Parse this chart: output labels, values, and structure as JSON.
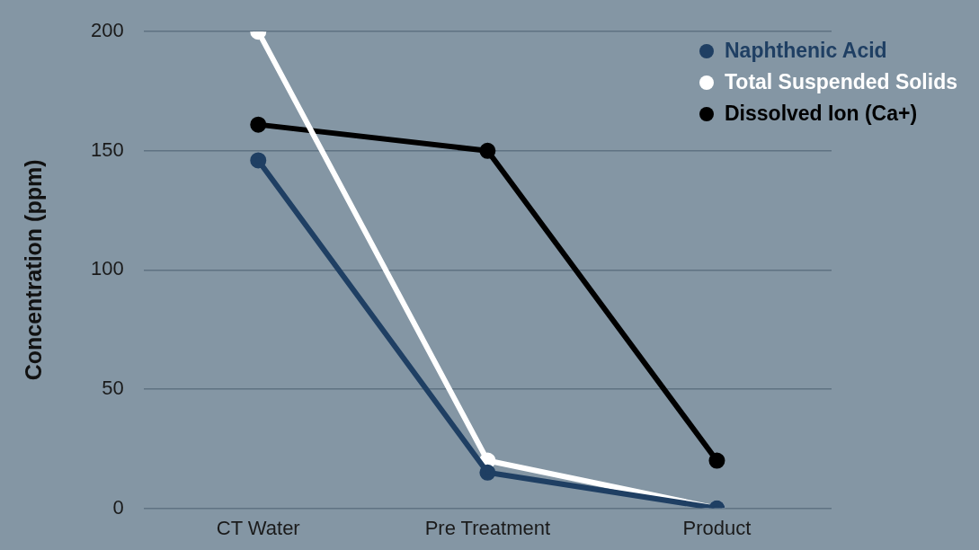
{
  "chart_data": {
    "type": "line",
    "ylabel": "Concentration (ppm)",
    "categories": [
      "CT Water",
      "Pre Treatment",
      "Product"
    ],
    "series": [
      {
        "name": "Naphthenic Acid",
        "color": "#1f3f63",
        "values": [
          146,
          15,
          0
        ]
      },
      {
        "name": "Total Suspended Solids",
        "color": "#ffffff",
        "values": [
          200,
          20,
          0
        ]
      },
      {
        "name": "Dissolved Ion (Ca+)",
        "color": "#000000",
        "values": [
          161,
          150,
          20
        ]
      }
    ],
    "ylim": [
      0,
      200
    ],
    "yticks": [
      0,
      50,
      100,
      150,
      200
    ],
    "grid": "y",
    "legend": "top right",
    "marker": "circle",
    "line_style": "solid"
  }
}
